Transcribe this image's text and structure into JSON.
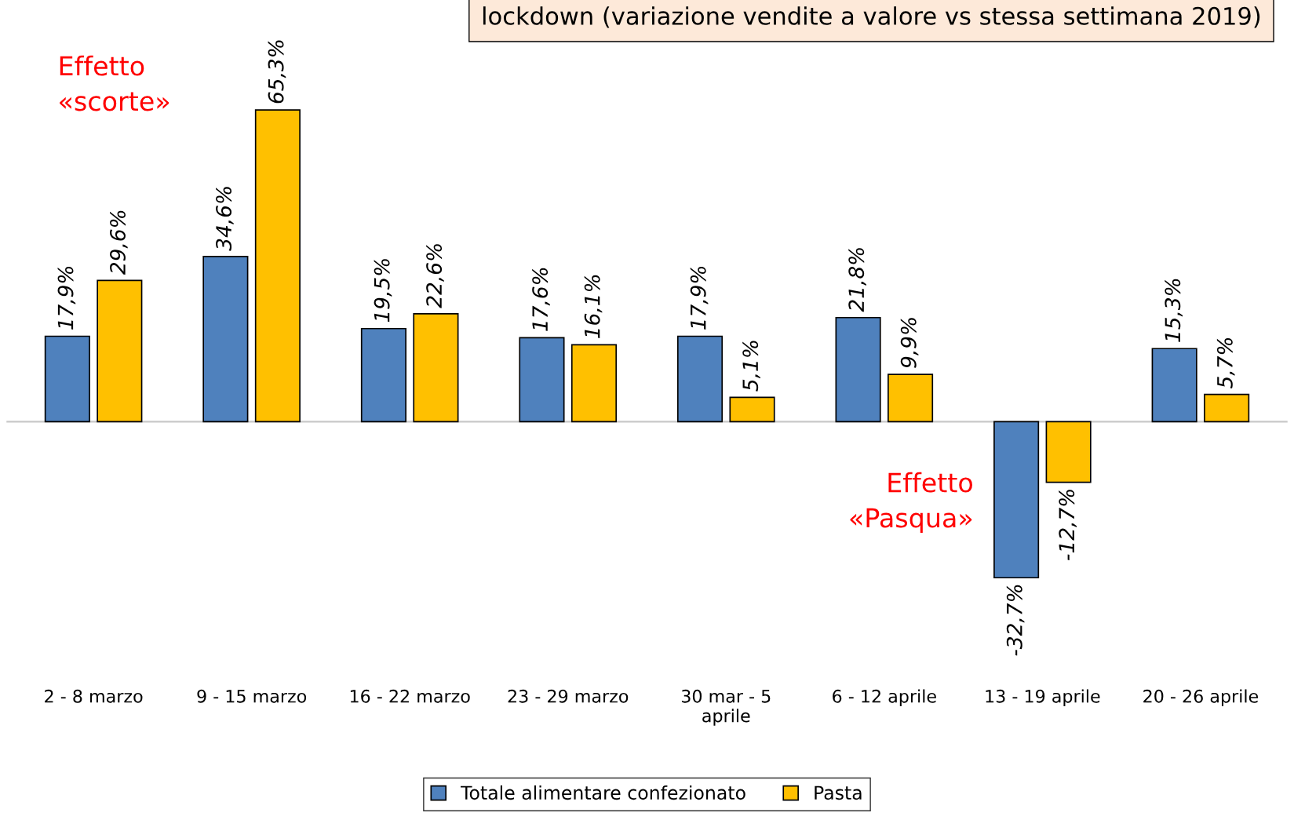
{
  "chart_data": {
    "type": "bar",
    "title": "lockdown (variazione vendite a valore vs stessa settimana 2019)",
    "categories": [
      "2 - 8 marzo",
      "9 - 15 marzo",
      "16 - 22 marzo",
      "23 - 29 marzo",
      "30 mar - 5\naprile",
      "6 - 12 aprile",
      "13 - 19 aprile",
      "20 - 26 aprile"
    ],
    "series": [
      {
        "name": "Totale alimentare confezionato",
        "color": "#4f81bd",
        "values": [
          17.9,
          34.6,
          19.5,
          17.6,
          17.9,
          21.8,
          -32.7,
          15.3
        ],
        "value_labels": [
          "17,9%",
          "34,6%",
          "19,5%",
          "17,6%",
          "17,9%",
          "21,8%",
          "-32,7%",
          "15,3%"
        ]
      },
      {
        "name": "Pasta",
        "color": "#ffc000",
        "values": [
          29.6,
          65.3,
          22.6,
          16.1,
          5.1,
          9.9,
          -12.7,
          5.7
        ],
        "value_labels": [
          "29,6%",
          "65,3%",
          "22,6%",
          "16,1%",
          "5,1%",
          "9,9%",
          "-12,7%",
          "5,7%"
        ]
      }
    ],
    "annotations": [
      "Effetto\n«scorte»",
      "Effetto\n«Pasqua»"
    ],
    "legend": "bottom",
    "grid": false
  }
}
